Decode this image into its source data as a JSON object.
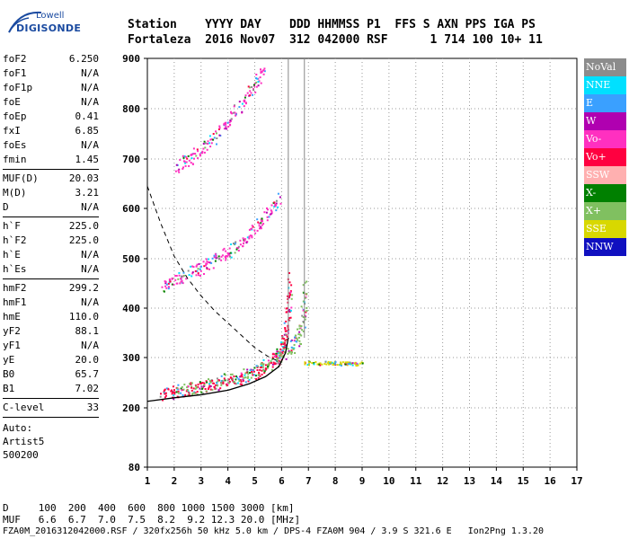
{
  "logo": {
    "line1": "Lowell",
    "line2": "DIGISONDE"
  },
  "header": {
    "line1": "Station    YYYY DAY    DDD HHMMSS P1  FFS S AXN PPS IGA PS",
    "line2": "Fortaleza  2016 Nov07  312 042000 RSF      1 714 100 10+ 11"
  },
  "params": {
    "g1": [
      {
        "k": "foF2",
        "v": "6.250"
      },
      {
        "k": "foF1",
        "v": "N/A"
      },
      {
        "k": "foF1p",
        "v": "N/A"
      },
      {
        "k": "foE",
        "v": "N/A"
      },
      {
        "k": "foEp",
        "v": "0.41"
      },
      {
        "k": "fxI",
        "v": "6.85"
      },
      {
        "k": "foEs",
        "v": "N/A"
      },
      {
        "k": "fmin",
        "v": "1.45"
      }
    ],
    "g2": [
      {
        "k": "MUF(D)",
        "v": "20.03"
      },
      {
        "k": "M(D)",
        "v": "3.21"
      },
      {
        "k": "D",
        "v": "N/A"
      }
    ],
    "g3": [
      {
        "k": "h`F",
        "v": "225.0"
      },
      {
        "k": "h`F2",
        "v": "225.0"
      },
      {
        "k": "h`E",
        "v": "N/A"
      },
      {
        "k": "h`Es",
        "v": "N/A"
      }
    ],
    "g4": [
      {
        "k": "hmF2",
        "v": "299.2"
      },
      {
        "k": "hmF1",
        "v": "N/A"
      },
      {
        "k": "hmE",
        "v": "110.0"
      },
      {
        "k": "yF2",
        "v": "88.1"
      },
      {
        "k": "yF1",
        "v": "N/A"
      },
      {
        "k": "yE",
        "v": "20.0"
      },
      {
        "k": "B0",
        "v": "65.7"
      },
      {
        "k": "B1",
        "v": "7.02"
      }
    ],
    "g5": [
      {
        "k": "C-level",
        "v": "33"
      }
    ],
    "auto": [
      "Auto:",
      "Artist5",
      "500200"
    ]
  },
  "legend": [
    {
      "label": "NoVal",
      "color": "#8c8c8c"
    },
    {
      "label": "NNE",
      "color": "#00e0ff"
    },
    {
      "label": "E",
      "color": "#3aa0ff"
    },
    {
      "label": "W",
      "color": "#b000b0"
    },
    {
      "label": "Vo-",
      "color": "#ff30c0"
    },
    {
      "label": "Vo+",
      "color": "#ff0040"
    },
    {
      "label": "SSW",
      "color": "#ffb0b0"
    },
    {
      "label": "X-",
      "color": "#008000"
    },
    {
      "label": "X+",
      "color": "#80c060"
    },
    {
      "label": "SSE",
      "color": "#d8d800"
    },
    {
      "label": "NNW",
      "color": "#1010c0"
    }
  ],
  "bottom": {
    "line1": "D     100  200  400  600  800 1000 1500 3000 [km]",
    "line2": "MUF   6.6  6.7  7.0  7.5  8.2  9.2 12.3 20.0 [MHz]",
    "line3": "FZA0M_2016312042000.RSF / 320fx256h 50 kHz 5.0 km / DPS-4 FZA0M 904 / 3.9 S 321.6 E   Ion2Png 1.3.20"
  },
  "chart_data": {
    "type": "scatter",
    "x_unit": "MHz",
    "y_unit": "km",
    "xlim": [
      1,
      17
    ],
    "ylim": [
      80,
      900
    ],
    "xticks": [
      1,
      2,
      3,
      4,
      5,
      6,
      7,
      8,
      9,
      10,
      11,
      12,
      13,
      14,
      15,
      16,
      17
    ],
    "yticks": [
      80,
      200,
      300,
      400,
      500,
      600,
      700,
      800,
      900
    ],
    "grid": true,
    "vlines_x": [
      6.25,
      6.85
    ],
    "profile_curve": [
      [
        1.0,
        213
      ],
      [
        2.0,
        220
      ],
      [
        3.0,
        226
      ],
      [
        4.0,
        235
      ],
      [
        4.8,
        248
      ],
      [
        5.4,
        262
      ],
      [
        5.9,
        282
      ],
      [
        6.15,
        310
      ],
      [
        6.25,
        340
      ]
    ],
    "dashed_curve": [
      [
        1.0,
        645
      ],
      [
        1.5,
        570
      ],
      [
        2.0,
        505
      ],
      [
        2.5,
        460
      ],
      [
        3.0,
        425
      ],
      [
        3.5,
        395
      ],
      [
        4.0,
        370
      ],
      [
        4.5,
        345
      ],
      [
        5.0,
        320
      ],
      [
        5.5,
        302
      ],
      [
        6.0,
        290
      ]
    ],
    "traces": [
      {
        "name": "O-trace 1st hop",
        "color_key": "Vo+",
        "pts": [
          [
            1.45,
            228
          ],
          [
            2.0,
            232
          ],
          [
            2.5,
            236
          ],
          [
            3.0,
            240
          ],
          [
            3.5,
            245
          ],
          [
            4.0,
            252
          ],
          [
            4.5,
            260
          ],
          [
            5.0,
            270
          ],
          [
            5.5,
            285
          ],
          [
            5.8,
            300
          ],
          [
            6.0,
            320
          ],
          [
            6.15,
            350
          ],
          [
            6.25,
            400
          ],
          [
            6.3,
            470
          ]
        ]
      },
      {
        "name": "X-trace 1st hop",
        "color_key": "X+",
        "pts": [
          [
            2.0,
            235
          ],
          [
            3.0,
            245
          ],
          [
            4.0,
            258
          ],
          [
            5.0,
            275
          ],
          [
            5.8,
            295
          ],
          [
            6.3,
            315
          ],
          [
            6.6,
            340
          ],
          [
            6.8,
            380
          ],
          [
            6.85,
            450
          ]
        ]
      },
      {
        "name": "2nd hop",
        "color_key": "Vo-",
        "pts": [
          [
            1.5,
            445
          ],
          [
            2.0,
            460
          ],
          [
            2.5,
            470
          ],
          [
            3.0,
            482
          ],
          [
            3.5,
            498
          ],
          [
            4.0,
            515
          ],
          [
            4.5,
            535
          ],
          [
            5.0,
            560
          ],
          [
            5.5,
            590
          ],
          [
            5.9,
            625
          ]
        ]
      },
      {
        "name": "3rd hop",
        "color_key": "Vo-",
        "pts": [
          [
            2.0,
            680
          ],
          [
            2.5,
            700
          ],
          [
            3.0,
            720
          ],
          [
            3.5,
            745
          ],
          [
            4.0,
            775
          ],
          [
            4.5,
            810
          ],
          [
            5.0,
            850
          ],
          [
            5.3,
            880
          ]
        ]
      },
      {
        "name": "Es-like",
        "color_key": "SSE",
        "pts": [
          [
            6.9,
            290
          ],
          [
            7.5,
            290
          ],
          [
            8.0,
            290
          ],
          [
            8.5,
            289
          ],
          [
            9.0,
            289
          ]
        ]
      }
    ]
  }
}
